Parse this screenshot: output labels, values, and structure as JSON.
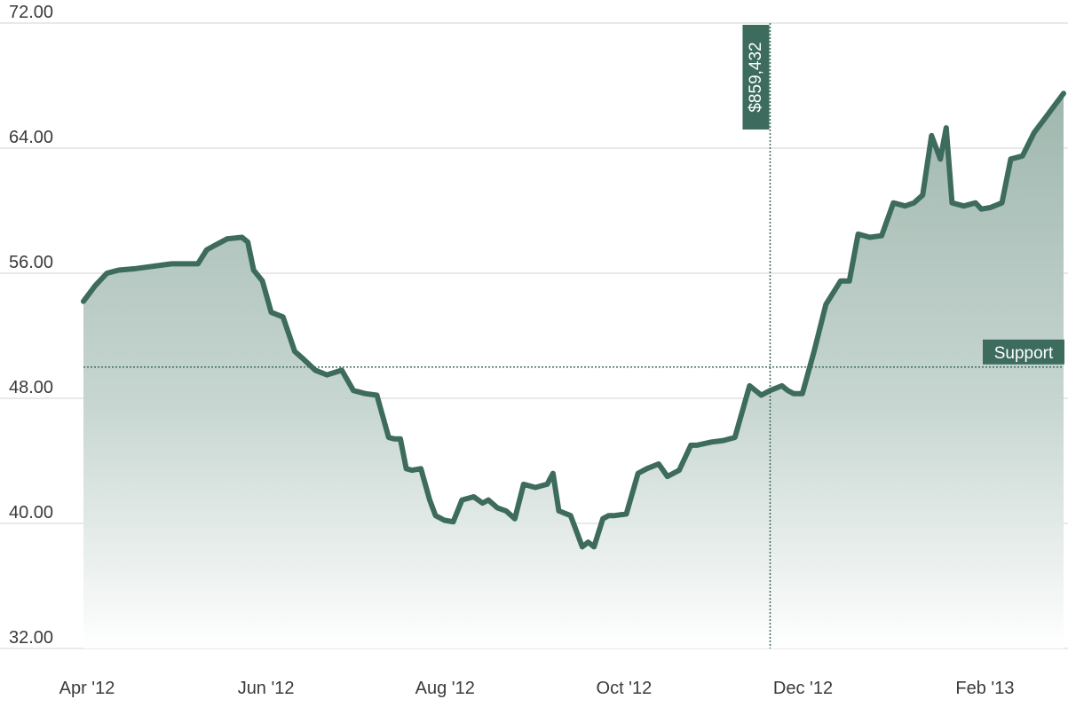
{
  "chart_data": {
    "type": "area",
    "title": "",
    "xlabel": "",
    "ylabel": "",
    "ylim": [
      32,
      72
    ],
    "xlim": [
      "2012-04-01",
      "2013-03-01"
    ],
    "grid": true,
    "legend": "none",
    "y_ticks": [
      {
        "value": 72,
        "label": "72.00"
      },
      {
        "value": 64,
        "label": "64.00"
      },
      {
        "value": 56,
        "label": "56.00"
      },
      {
        "value": 48,
        "label": "48.00"
      },
      {
        "value": 40,
        "label": "40.00"
      },
      {
        "value": 32,
        "label": "32.00"
      }
    ],
    "x_ticks": [
      {
        "date": "2012-04-01",
        "label": "Apr '12"
      },
      {
        "date": "2012-06-01",
        "label": "Jun '12"
      },
      {
        "date": "2012-08-01",
        "label": "Aug '12"
      },
      {
        "date": "2012-10-01",
        "label": "Oct '12"
      },
      {
        "date": "2012-12-01",
        "label": "Dec '12"
      },
      {
        "date": "2013-02-01",
        "label": "Feb '13"
      }
    ],
    "support_line": {
      "value": 50.0,
      "label": "Support"
    },
    "marker": {
      "date": "2012-11-21",
      "label": "$859,432"
    },
    "colors": {
      "line": "#3d6b5d",
      "fill": "#a9bfb7",
      "grid": "#dcdcdc",
      "badge": "#3d6b5d"
    },
    "series": [
      {
        "x": [
          "2012-04-01",
          "2012-04-05",
          "2012-04-09",
          "2012-04-13",
          "2012-04-19",
          "2012-05-01",
          "2012-05-10",
          "2012-05-13",
          "2012-05-15",
          "2012-05-20",
          "2012-05-25",
          "2012-05-27",
          "2012-05-29",
          "2012-06-01",
          "2012-06-04",
          "2012-06-08",
          "2012-06-12",
          "2012-06-15",
          "2012-06-19",
          "2012-06-23",
          "2012-06-28",
          "2012-07-02",
          "2012-07-06",
          "2012-07-10",
          "2012-07-14",
          "2012-07-16",
          "2012-07-18",
          "2012-07-20",
          "2012-07-22",
          "2012-07-25",
          "2012-07-28",
          "2012-07-30",
          "2012-08-02",
          "2012-08-05",
          "2012-08-08",
          "2012-08-12",
          "2012-08-15",
          "2012-08-17",
          "2012-08-20",
          "2012-08-23",
          "2012-08-26",
          "2012-08-29",
          "2012-09-02",
          "2012-09-06",
          "2012-09-08",
          "2012-09-10",
          "2012-09-14",
          "2012-09-18",
          "2012-09-20",
          "2012-09-22",
          "2012-09-25",
          "2012-09-27",
          "2012-09-29",
          "2012-10-03",
          "2012-10-07",
          "2012-10-10",
          "2012-10-14",
          "2012-10-17",
          "2012-10-21",
          "2012-10-25",
          "2012-10-27",
          "2012-11-01",
          "2012-11-05",
          "2012-11-09",
          "2012-11-14",
          "2012-11-16",
          "2012-11-18",
          "2012-11-21",
          "2012-11-25",
          "2012-11-27",
          "2012-11-29",
          "2012-12-02",
          "2012-12-06",
          "2012-12-10",
          "2012-12-15",
          "2012-12-18",
          "2012-12-21",
          "2012-12-25",
          "2012-12-29",
          "2013-01-02",
          "2013-01-06",
          "2013-01-09",
          "2013-01-12",
          "2013-01-15",
          "2013-01-18",
          "2013-01-20",
          "2013-01-22",
          "2013-01-26",
          "2013-01-30",
          "2013-02-01",
          "2013-02-04",
          "2013-02-08",
          "2013-02-11",
          "2013-02-15",
          "2013-02-19",
          "2013-02-23",
          "2013-03-01"
        ],
        "values": [
          54.2,
          55.2,
          56.0,
          56.2,
          56.3,
          56.6,
          56.6,
          57.5,
          57.7,
          58.2,
          58.3,
          58.0,
          56.2,
          55.5,
          53.5,
          53.2,
          51.0,
          50.5,
          49.8,
          49.5,
          49.8,
          48.5,
          48.3,
          48.2,
          45.5,
          45.4,
          45.4,
          43.5,
          43.4,
          43.5,
          41.5,
          40.5,
          40.2,
          40.1,
          41.5,
          41.7,
          41.3,
          41.5,
          41.0,
          40.8,
          40.3,
          42.5,
          42.3,
          42.5,
          43.2,
          40.8,
          40.5,
          38.5,
          38.8,
          38.5,
          40.3,
          40.5,
          40.5,
          40.6,
          43.2,
          43.5,
          43.8,
          43.0,
          43.4,
          45.0,
          45.0,
          45.2,
          45.3,
          45.5,
          48.8,
          48.5,
          48.2,
          48.5,
          48.8,
          48.5,
          48.3,
          48.3,
          51.0,
          54.0,
          55.5,
          55.5,
          58.5,
          58.3,
          58.4,
          60.5,
          60.3,
          60.5,
          61.0,
          64.8,
          63.3,
          65.3,
          60.5,
          60.3,
          60.5,
          60.1,
          60.2,
          60.5,
          63.3,
          63.5,
          65.0,
          66.0,
          67.5
        ]
      }
    ]
  }
}
